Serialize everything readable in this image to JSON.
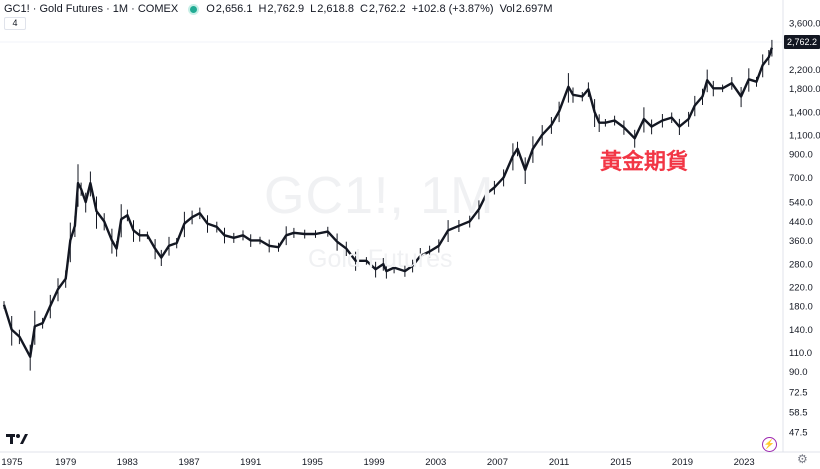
{
  "legend": {
    "symbol": "GC1! · Gold Futures · 1M · COMEX",
    "open_label": "O",
    "open": "2,656.1",
    "high_label": "H",
    "high": "2,762.9",
    "low_label": "L",
    "low": "2,618.8",
    "close_label": "C",
    "close": "2,762.2",
    "change": "+102.8 (+3.87%)",
    "vol_label": "Vol",
    "vol": "2.697M",
    "indicator_count": "4"
  },
  "watermark": {
    "title": "GC1!, 1M",
    "subtitle": "Gold Futures"
  },
  "annotation": "黃金期貨",
  "last_price_badge": "2,762.2",
  "colors": {
    "candle": "#131722",
    "annotation": "#f23645",
    "status_dot": "#22ab94",
    "axis_text": "#131722"
  },
  "icons": {
    "logo": "tradingview-logo-icon",
    "bolt": "lightning-icon",
    "settings": "gear-icon"
  },
  "chart_data": {
    "type": "line",
    "log_scale": true,
    "xlim": [
      1975,
      2025
    ],
    "ylim": [
      40,
      4300
    ],
    "y_ticks": [
      {
        "value": 3600,
        "label": "3,600.0"
      },
      {
        "value": 2200,
        "label": "2,200.0"
      },
      {
        "value": 1800,
        "label": "1,800.0"
      },
      {
        "value": 1400,
        "label": "1,400.0"
      },
      {
        "value": 1100,
        "label": "1,100.0"
      },
      {
        "value": 900,
        "label": "900.0"
      },
      {
        "value": 700,
        "label": "700.0"
      },
      {
        "value": 540,
        "label": "540.0"
      },
      {
        "value": 440,
        "label": "440.0"
      },
      {
        "value": 360,
        "label": "360.0"
      },
      {
        "value": 280,
        "label": "280.0"
      },
      {
        "value": 220,
        "label": "220.0"
      },
      {
        "value": 180,
        "label": "180.0"
      },
      {
        "value": 140,
        "label": "140.0"
      },
      {
        "value": 110,
        "label": "110.0"
      },
      {
        "value": 90,
        "label": "90.0"
      },
      {
        "value": 72.5,
        "label": "72.5"
      },
      {
        "value": 58.5,
        "label": "58.5"
      },
      {
        "value": 47.5,
        "label": "47.5"
      }
    ],
    "x_ticks": [
      "1975",
      "1979",
      "1983",
      "1987",
      "1991",
      "1995",
      "1999",
      "2003",
      "2007",
      "2011",
      "2015",
      "2019",
      "2023"
    ],
    "x_tick_years": [
      1975,
      1979,
      1983,
      1987,
      1991,
      1995,
      1999,
      2003,
      2007,
      2011,
      2015,
      2019,
      2023
    ],
    "series": [
      {
        "x": [
          1975.0,
          1975.5,
          1976.0,
          1976.7,
          1977.0,
          1977.5,
          1978.0,
          1978.5,
          1979.0,
          1979.3,
          1979.6,
          1979.8,
          1980.0,
          1980.3,
          1980.6,
          1981.0,
          1981.5,
          1982.0,
          1982.3,
          1982.6,
          1983.0,
          1983.4,
          1983.8,
          1984.3,
          1984.8,
          1985.2,
          1985.7,
          1986.2,
          1986.7,
          1987.2,
          1987.7,
          1988.2,
          1988.8,
          1989.3,
          1989.9,
          1990.5,
          1991.0,
          1991.6,
          1992.2,
          1992.8,
          1993.3,
          1993.8,
          1994.5,
          1995.2,
          1996.0,
          1996.6,
          1997.2,
          1997.8,
          1998.5,
          1999.1,
          1999.6,
          1999.8,
          2000.3,
          2001.0,
          2001.5,
          2002.0,
          2002.6,
          2003.2,
          2003.8,
          2004.5,
          2005.2,
          2005.8,
          2006.3,
          2006.8,
          2007.4,
          2008.0,
          2008.3,
          2008.8,
          2009.3,
          2009.9,
          2010.5,
          2011.0,
          2011.6,
          2011.9,
          2012.5,
          2012.9,
          2013.3,
          2013.6,
          2014.0,
          2014.6,
          2015.2,
          2015.9,
          2016.5,
          2017.0,
          2017.7,
          2018.3,
          2018.8,
          2019.4,
          2019.8,
          2020.3,
          2020.6,
          2021.0,
          2021.6,
          2022.2,
          2022.8,
          2023.3,
          2023.8,
          2024.2,
          2024.6,
          2024.8
        ],
        "values": [
          182,
          140,
          130,
          105,
          145,
          150,
          180,
          215,
          240,
          360,
          420,
          660,
          620,
          540,
          660,
          490,
          440,
          360,
          330,
          450,
          470,
          400,
          380,
          380,
          330,
          300,
          340,
          350,
          430,
          460,
          480,
          430,
          415,
          380,
          370,
          380,
          360,
          360,
          340,
          335,
          380,
          390,
          385,
          385,
          395,
          355,
          330,
          290,
          290,
          265,
          280,
          260,
          270,
          260,
          275,
          305,
          320,
          340,
          400,
          420,
          440,
          500,
          590,
          630,
          700,
          880,
          950,
          760,
          950,
          1100,
          1220,
          1410,
          1830,
          1680,
          1650,
          1780,
          1400,
          1250,
          1250,
          1280,
          1190,
          1060,
          1300,
          1200,
          1280,
          1320,
          1200,
          1300,
          1500,
          1650,
          1960,
          1800,
          1800,
          1900,
          1650,
          1980,
          1930,
          2300,
          2500,
          2762
        ]
      }
    ]
  }
}
